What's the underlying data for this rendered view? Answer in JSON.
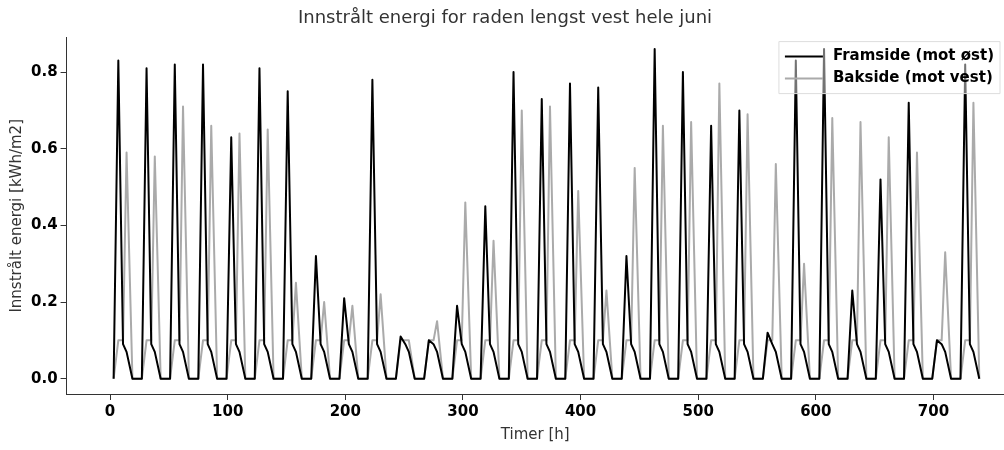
{
  "chart_data": {
    "type": "line",
    "title": "Innstrålt energi for raden lengst vest hele juni",
    "xlabel": "Timer [h]",
    "ylabel": "Innstrålt energi [kWh/m2]",
    "x": [
      3,
      7,
      11,
      14,
      19,
      27,
      31,
      35,
      38,
      43,
      51,
      55,
      59,
      62,
      67,
      75,
      79,
      83,
      86,
      91,
      99,
      103,
      107,
      110,
      115,
      123,
      127,
      131,
      134,
      139,
      147,
      151,
      155,
      158,
      163,
      171,
      175,
      179,
      182,
      187,
      195,
      199,
      203,
      206,
      211,
      219,
      223,
      227,
      230,
      235,
      243,
      247,
      251,
      254,
      259,
      267,
      271,
      275,
      278,
      283,
      291,
      295,
      299,
      302,
      307,
      315,
      319,
      323,
      326,
      331,
      339,
      343,
      347,
      350,
      355,
      363,
      367,
      371,
      374,
      379,
      387,
      391,
      395,
      398,
      403,
      411,
      415,
      419,
      422,
      427,
      435,
      439,
      443,
      446,
      451,
      459,
      463,
      467,
      470,
      475,
      483,
      487,
      491,
      494,
      499,
      507,
      511,
      515,
      518,
      523,
      531,
      535,
      539,
      542,
      547,
      555,
      559,
      563,
      566,
      571,
      579,
      583,
      587,
      590,
      595,
      603,
      607,
      611,
      614,
      619,
      627,
      631,
      635,
      638,
      643,
      651,
      655,
      659,
      662,
      667,
      675,
      679,
      683,
      686,
      691,
      699,
      703,
      707,
      710,
      715,
      723,
      727,
      731,
      734,
      739
    ],
    "series": [
      {
        "name": "Framside (mot øst)",
        "color": "#000000",
        "values": [
          0,
          0.83,
          0.09,
          0.07,
          0,
          0,
          0.81,
          0.09,
          0.07,
          0,
          0,
          0.82,
          0.09,
          0.07,
          0,
          0,
          0.82,
          0.09,
          0.07,
          0,
          0,
          0.63,
          0.09,
          0.07,
          0,
          0,
          0.81,
          0.09,
          0.07,
          0,
          0,
          0.75,
          0.09,
          0.07,
          0,
          0,
          0.32,
          0.09,
          0.07,
          0,
          0,
          0.21,
          0.09,
          0.07,
          0,
          0,
          0.78,
          0.09,
          0.07,
          0,
          0,
          0.11,
          0.09,
          0.07,
          0,
          0,
          0.1,
          0.09,
          0.07,
          0,
          0,
          0.19,
          0.09,
          0.07,
          0,
          0,
          0.45,
          0.09,
          0.07,
          0,
          0,
          0.8,
          0.09,
          0.07,
          0,
          0,
          0.73,
          0.09,
          0.07,
          0,
          0,
          0.77,
          0.09,
          0.07,
          0,
          0,
          0.76,
          0.09,
          0.07,
          0,
          0,
          0.32,
          0.09,
          0.07,
          0,
          0,
          0.86,
          0.09,
          0.07,
          0,
          0,
          0.8,
          0.09,
          0.07,
          0,
          0,
          0.66,
          0.09,
          0.07,
          0,
          0,
          0.7,
          0.09,
          0.07,
          0,
          0,
          0.12,
          0.09,
          0.07,
          0,
          0,
          0.83,
          0.09,
          0.07,
          0,
          0,
          0.86,
          0.09,
          0.07,
          0,
          0,
          0.23,
          0.09,
          0.07,
          0,
          0,
          0.52,
          0.09,
          0.07,
          0,
          0,
          0.72,
          0.09,
          0.07,
          0,
          0,
          0.1,
          0.09,
          0.07,
          0,
          0,
          0.82,
          0.09,
          0.07,
          0
        ]
      },
      {
        "name": "Bakside (mot vest)",
        "color": "#aaaaaa",
        "values": [
          0,
          0.1,
          0.1,
          0.59,
          0,
          0,
          0.1,
          0.1,
          0.58,
          0,
          0,
          0.1,
          0.1,
          0.71,
          0,
          0,
          0.1,
          0.1,
          0.66,
          0,
          0,
          0.1,
          0.1,
          0.64,
          0,
          0,
          0.1,
          0.1,
          0.65,
          0,
          0,
          0.1,
          0.1,
          0.25,
          0,
          0,
          0.1,
          0.1,
          0.2,
          0,
          0,
          0.1,
          0.1,
          0.19,
          0,
          0,
          0.1,
          0.1,
          0.22,
          0,
          0,
          0.1,
          0.1,
          0.1,
          0,
          0,
          0.1,
          0.1,
          0.15,
          0,
          0,
          0.1,
          0.1,
          0.46,
          0,
          0,
          0.1,
          0.1,
          0.36,
          0,
          0,
          0.1,
          0.1,
          0.7,
          0,
          0,
          0.1,
          0.1,
          0.71,
          0,
          0,
          0.1,
          0.1,
          0.49,
          0,
          0,
          0.1,
          0.1,
          0.23,
          0,
          0,
          0.1,
          0.1,
          0.55,
          0,
          0,
          0.1,
          0.1,
          0.66,
          0,
          0,
          0.1,
          0.1,
          0.67,
          0,
          0,
          0.1,
          0.1,
          0.77,
          0,
          0,
          0.1,
          0.1,
          0.69,
          0,
          0,
          0.1,
          0.1,
          0.56,
          0,
          0,
          0.1,
          0.1,
          0.3,
          0,
          0,
          0.1,
          0.1,
          0.68,
          0,
          0,
          0.1,
          0.1,
          0.67,
          0,
          0,
          0.1,
          0.1,
          0.63,
          0,
          0,
          0.1,
          0.1,
          0.59,
          0,
          0,
          0.1,
          0.1,
          0.33,
          0,
          0,
          0.1,
          0.1,
          0.72,
          0
        ]
      }
    ],
    "xlim": [
      -37,
      760
    ],
    "xticks": [
      0,
      100,
      200,
      300,
      400,
      500,
      600,
      700
    ],
    "ylim": [
      -0.04,
      0.89
    ],
    "yticks": [
      {
        "value": 0,
        "label": "0.0"
      },
      {
        "value": 0.2,
        "label": "0.2"
      },
      {
        "value": 0.4,
        "label": "0.4"
      },
      {
        "value": 0.6,
        "label": "0.6"
      },
      {
        "value": 0.8,
        "label": "0.8"
      }
    ],
    "legend": "top right",
    "marker": "none",
    "line_style": "solid",
    "grid": false
  }
}
